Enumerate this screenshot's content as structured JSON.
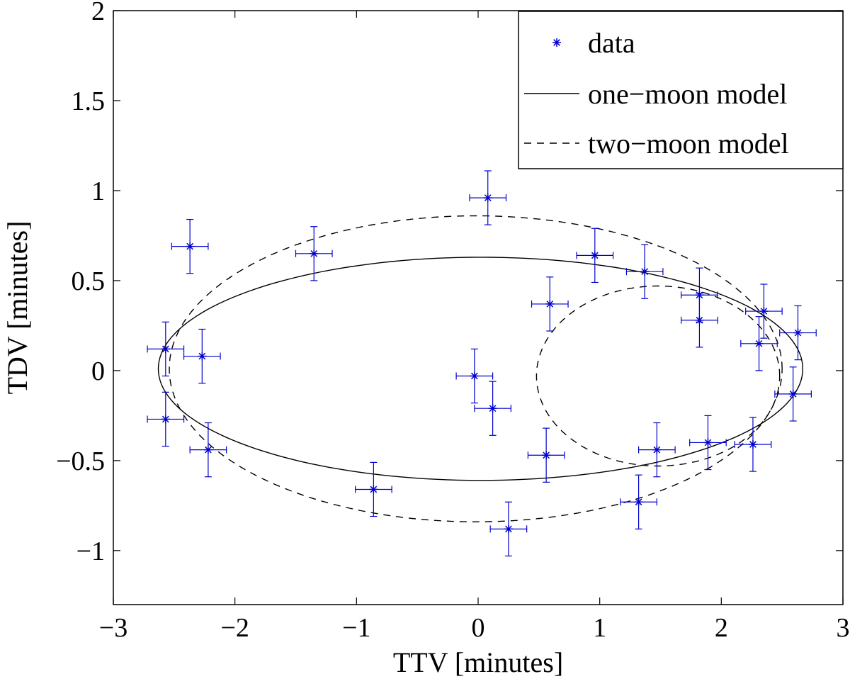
{
  "chart_data": {
    "type": "scatter",
    "title": "",
    "xlabel": "TTV [minutes]",
    "ylabel": "TDV [minutes]",
    "xlim": [
      -3,
      3
    ],
    "ylim": [
      -1.3,
      2
    ],
    "xticks": [
      -3,
      -2,
      -1,
      0,
      1,
      2,
      3
    ],
    "yticks": [
      -1,
      -0.5,
      0,
      0.5,
      1,
      1.5,
      2
    ],
    "xtick_labels": [
      "−3",
      "−2",
      "−1",
      "0",
      "1",
      "2",
      "3"
    ],
    "ytick_labels": [
      "−1",
      "−0.5",
      "0",
      "0.5",
      "1",
      "1.5",
      "2"
    ],
    "legend_position": "top-right",
    "colors": {
      "data": "#0000cc",
      "models": "#000000"
    },
    "series": [
      {
        "name": "data",
        "style": "markers-with-errorbars",
        "marker": "asterisk",
        "x_err": 0.15,
        "y_err": 0.15,
        "points": [
          {
            "x": -2.37,
            "y": 0.69
          },
          {
            "x": -1.35,
            "y": 0.65
          },
          {
            "x": 0.08,
            "y": 0.96
          },
          {
            "x": 0.96,
            "y": 0.64
          },
          {
            "x": 1.37,
            "y": 0.55
          },
          {
            "x": 0.59,
            "y": 0.37
          },
          {
            "x": 1.82,
            "y": 0.42
          },
          {
            "x": 1.82,
            "y": 0.28
          },
          {
            "x": 2.35,
            "y": 0.33
          },
          {
            "x": 2.63,
            "y": 0.21
          },
          {
            "x": 2.31,
            "y": 0.15
          },
          {
            "x": -2.57,
            "y": 0.12
          },
          {
            "x": -2.27,
            "y": 0.08
          },
          {
            "x": -0.03,
            "y": -0.03
          },
          {
            "x": 0.12,
            "y": -0.21
          },
          {
            "x": 2.59,
            "y": -0.13
          },
          {
            "x": -2.57,
            "y": -0.27
          },
          {
            "x": -2.22,
            "y": -0.44
          },
          {
            "x": 0.56,
            "y": -0.47
          },
          {
            "x": 1.47,
            "y": -0.44
          },
          {
            "x": 1.89,
            "y": -0.4
          },
          {
            "x": 2.26,
            "y": -0.41
          },
          {
            "x": -0.86,
            "y": -0.66
          },
          {
            "x": 1.32,
            "y": -0.73
          },
          {
            "x": 0.25,
            "y": -0.88
          }
        ]
      },
      {
        "name": "one−moon model",
        "style": "solid",
        "curve": {
          "shape": "ellipse",
          "cx": 0.02,
          "cy": 0.01,
          "rx": 2.65,
          "ry": 0.62
        }
      },
      {
        "name": "two−moon model",
        "style": "dashed",
        "curves": [
          {
            "shape": "ellipse",
            "cx": -0.02,
            "cy": 0.01,
            "rx": 2.52,
            "ry": 0.85
          },
          {
            "shape": "ellipse",
            "cx": 1.48,
            "cy": -0.03,
            "rx": 1.0,
            "ry": 0.5
          }
        ]
      }
    ]
  }
}
